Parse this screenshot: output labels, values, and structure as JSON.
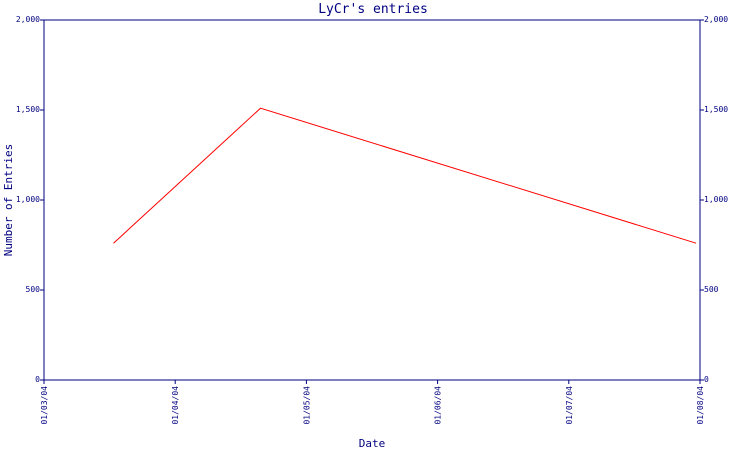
{
  "colors": {
    "axis": "#000080",
    "text": "#000080",
    "series": "#ff0000",
    "background": "#ffffff"
  },
  "chart_data": {
    "type": "line",
    "title": "LyCr's entries",
    "xlabel": "Date",
    "ylabel": "Number of Entries",
    "y_ticks": [
      "0",
      "500",
      "1,000",
      "1,500",
      "2,000"
    ],
    "ylim": [
      0,
      2000
    ],
    "x_ticks": [
      "01/03/04",
      "01/04/04",
      "01/05/04",
      "01/06/04",
      "01/07/04",
      "01/08/04"
    ],
    "xlim": [
      "01/03/04",
      "01/08/04"
    ],
    "x_tick_values": [
      0,
      1,
      2,
      3,
      4,
      5
    ],
    "y_axis_right": true,
    "grid": false,
    "legend": "none",
    "series": [
      {
        "x": [
          "2004-03-17",
          "2004-04-23",
          "2004-07-29"
        ],
        "x_month_index": [
          0.53,
          1.65,
          4.97
        ],
        "values": [
          760,
          1510,
          760
        ]
      }
    ]
  }
}
